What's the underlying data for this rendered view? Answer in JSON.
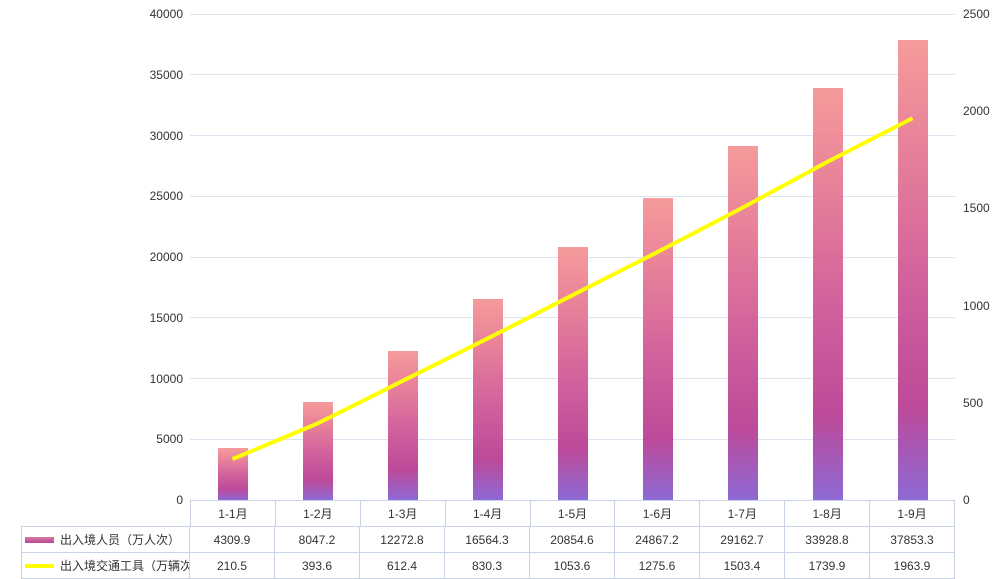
{
  "chart_data": {
    "type": "bar",
    "subtype": "bar-line-combo",
    "categories": [
      "1-1月",
      "1-2月",
      "1-3月",
      "1-4月",
      "1-5月",
      "1-6月",
      "1-7月",
      "1-8月",
      "1-9月"
    ],
    "series": [
      {
        "name": "出入境人员（万人次）",
        "type": "bar",
        "axis": "left",
        "values": [
          4309.9,
          8047.2,
          12272.8,
          16564.3,
          20854.6,
          24867.2,
          29162.7,
          33928.8,
          37853.3
        ]
      },
      {
        "name": "出入境交通工具（万辆次）",
        "type": "line",
        "axis": "right",
        "values": [
          210.5,
          393.6,
          612.4,
          830.3,
          1053.6,
          1275.6,
          1503.4,
          1739.9,
          1963.9
        ]
      }
    ],
    "left_axis": {
      "min": 0,
      "max": 40000,
      "step": 5000,
      "ticks": [
        0,
        5000,
        10000,
        15000,
        20000,
        25000,
        30000,
        35000,
        40000
      ]
    },
    "right_axis": {
      "min": 0,
      "max": 2500,
      "step": 500,
      "ticks": [
        0,
        500,
        1000,
        1500,
        2000,
        2500
      ]
    },
    "grid": true,
    "legend_position": "bottom-table",
    "title": "",
    "xlabel": "",
    "ylabel_left": "",
    "ylabel_right": "",
    "colors": {
      "bar_gradient_top": "#f59b9b",
      "bar_gradient_mid": "#c04a98",
      "bar_gradient_bottom": "#8d69d5",
      "line": "#ffff00",
      "gridline": "#dde3ef",
      "table_border": "#c9d3e6",
      "text": "#333333"
    }
  }
}
